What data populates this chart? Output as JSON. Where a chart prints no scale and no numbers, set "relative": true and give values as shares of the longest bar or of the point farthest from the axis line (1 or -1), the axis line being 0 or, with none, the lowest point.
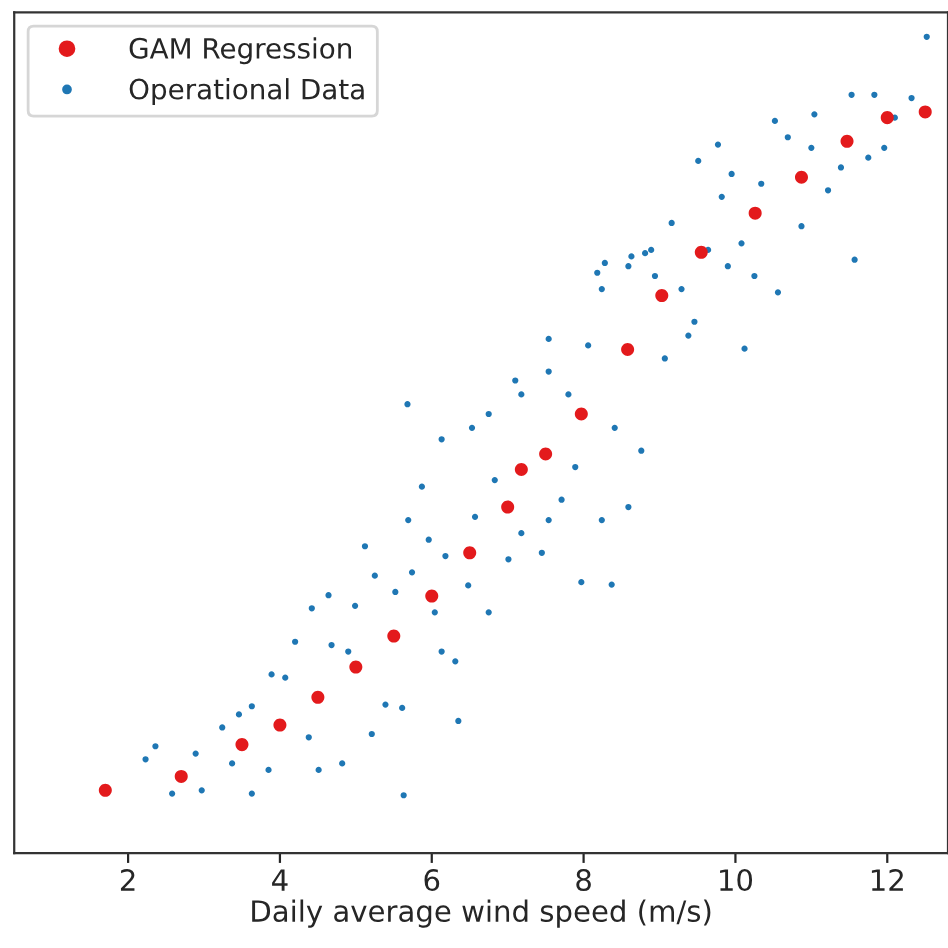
{
  "chart_data": {
    "type": "scatter",
    "xlabel": "Daily average wind speed (m/s)",
    "relative": true,
    "xlim": [
      0.5,
      12.8
    ],
    "xticks": [
      2,
      4,
      6,
      8,
      10,
      12
    ],
    "legend": "top left",
    "marker": "circle",
    "grid": false,
    "series": [
      {
        "name": "GAM Regression",
        "color": "#e31a1c",
        "x": [
          1.7,
          2.7,
          3.5,
          4,
          4.5,
          5,
          5.5,
          6,
          6.5,
          7,
          7.18,
          7.5,
          7.97,
          8.58,
          9.03,
          9.55,
          10.26,
          10.87,
          11.47,
          12.0,
          12.5
        ],
        "values": [
          0.077,
          0.094,
          0.133,
          0.157,
          0.191,
          0.228,
          0.266,
          0.315,
          0.368,
          0.424,
          0.47,
          0.489,
          0.538,
          0.617,
          0.683,
          0.736,
          0.784,
          0.828,
          0.872,
          0.901,
          0.908
        ]
      },
      {
        "name": "Operational Data",
        "color": "#1f77b4",
        "x": [
          2.23,
          2.36,
          2.58,
          2.89,
          2.97,
          3.24,
          3.37,
          3.46,
          3.63,
          3.63,
          3.85,
          3.89,
          4.07,
          4.2,
          4.38,
          4.42,
          4.51,
          4.64,
          4.68,
          4.82,
          4.9,
          4.99,
          5.12,
          5.21,
          5.25,
          5.39,
          5.52,
          5.61,
          5.63,
          5.69,
          5.74,
          5.87,
          5.96,
          6.04,
          6.13,
          6.18,
          6.35,
          6.31,
          6.48,
          6.57,
          6.75,
          6.83,
          7.01,
          7.18,
          7.45,
          7.54,
          7.71,
          7.89,
          7.97,
          8.24,
          8.37,
          8.59,
          5.68,
          6.13,
          6.53,
          6.75,
          7.1,
          7.18,
          7.54,
          7.54,
          7.8,
          8.06,
          8.18,
          8.24,
          8.28,
          8.41,
          8.59,
          8.63,
          8.76,
          8.81,
          8.89,
          8.94,
          9.07,
          9.16,
          9.29,
          9.38,
          9.46,
          9.51,
          9.64,
          9.77,
          9.82,
          9.9,
          9.95,
          10.08,
          10.12,
          10.25,
          10.34,
          10.52,
          10.56,
          10.69,
          10.87,
          11.0,
          11.04,
          11.22,
          11.39,
          11.53,
          11.57,
          11.75,
          11.83,
          11.96,
          12.1,
          12.32,
          12.52
        ],
        "values": [
          0.115,
          0.131,
          0.073,
          0.122,
          0.077,
          0.154,
          0.11,
          0.17,
          0.18,
          0.073,
          0.102,
          0.219,
          0.215,
          0.259,
          0.142,
          0.3,
          0.102,
          0.316,
          0.255,
          0.11,
          0.247,
          0.303,
          0.376,
          0.146,
          0.34,
          0.182,
          0.32,
          0.178,
          0.071,
          0.408,
          0.344,
          0.449,
          0.384,
          0.295,
          0.247,
          0.364,
          0.162,
          0.235,
          0.328,
          0.412,
          0.295,
          0.457,
          0.36,
          0.392,
          0.368,
          0.408,
          0.433,
          0.473,
          0.332,
          0.408,
          0.329,
          0.424,
          0.55,
          0.507,
          0.521,
          0.538,
          0.579,
          0.562,
          0.63,
          0.59,
          0.562,
          0.622,
          0.711,
          0.691,
          0.723,
          0.521,
          0.719,
          0.731,
          0.493,
          0.735,
          0.739,
          0.707,
          0.606,
          0.772,
          0.691,
          0.634,
          0.651,
          0.848,
          0.739,
          0.868,
          0.804,
          0.719,
          0.832,
          0.747,
          0.618,
          0.707,
          0.82,
          0.897,
          0.687,
          0.877,
          0.768,
          0.864,
          0.905,
          0.812,
          0.84,
          0.929,
          0.727,
          0.852,
          0.929,
          0.864,
          0.901,
          0.925,
          1.0
        ]
      }
    ]
  }
}
